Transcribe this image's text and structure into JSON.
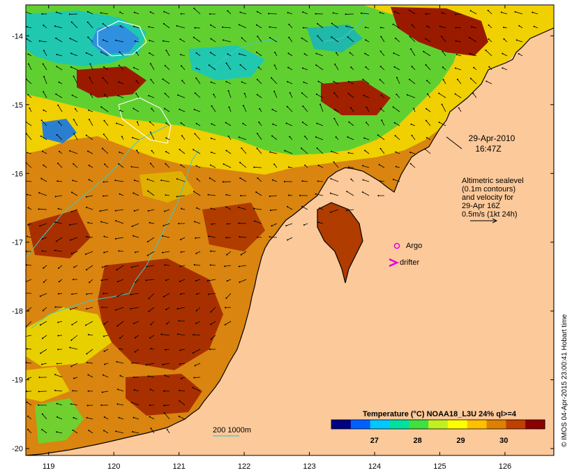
{
  "map": {
    "x_ticks": [
      "119",
      "120",
      "121",
      "122",
      "123",
      "124",
      "125",
      "126"
    ],
    "y_ticks": [
      "-14",
      "-15",
      "-16",
      "-17",
      "-18",
      "-19",
      "-20"
    ],
    "lon_range": [
      118.65,
      126.75
    ],
    "lat_range": [
      -13.55,
      -20.1
    ]
  },
  "annotations": {
    "date": "29-Apr-2010",
    "time": "16:47Z",
    "sealevel_lines": [
      "Altimetric sealevel",
      "(0.1m contours)",
      "and velocity for",
      "29-Apr 16Z",
      "0.5m/s (1kt 24h)"
    ]
  },
  "markers": {
    "argo_label": "Argo",
    "drifter_label": "drifter",
    "argo_color": "#e000e0",
    "drifter_color": "#e000e0"
  },
  "isobath": {
    "label": "200  1000m",
    "color": "#40c8c8"
  },
  "legend": {
    "title": "Temperature (°C) NOAA18_L3U 24% ql>=4",
    "ticks": [
      "27",
      "28",
      "29",
      "30"
    ],
    "colors": [
      "#000080",
      "#0060ff",
      "#00c8ff",
      "#00e0a0",
      "#40e040",
      "#c0f020",
      "#ffff00",
      "#ffc000",
      "#e08000",
      "#c04000",
      "#8b0000"
    ]
  },
  "credit": "© IMOS 04-Apr-2015 23:00:41 Hobart time",
  "colors": {
    "land": "#fcc99a",
    "frame": "#000000"
  }
}
